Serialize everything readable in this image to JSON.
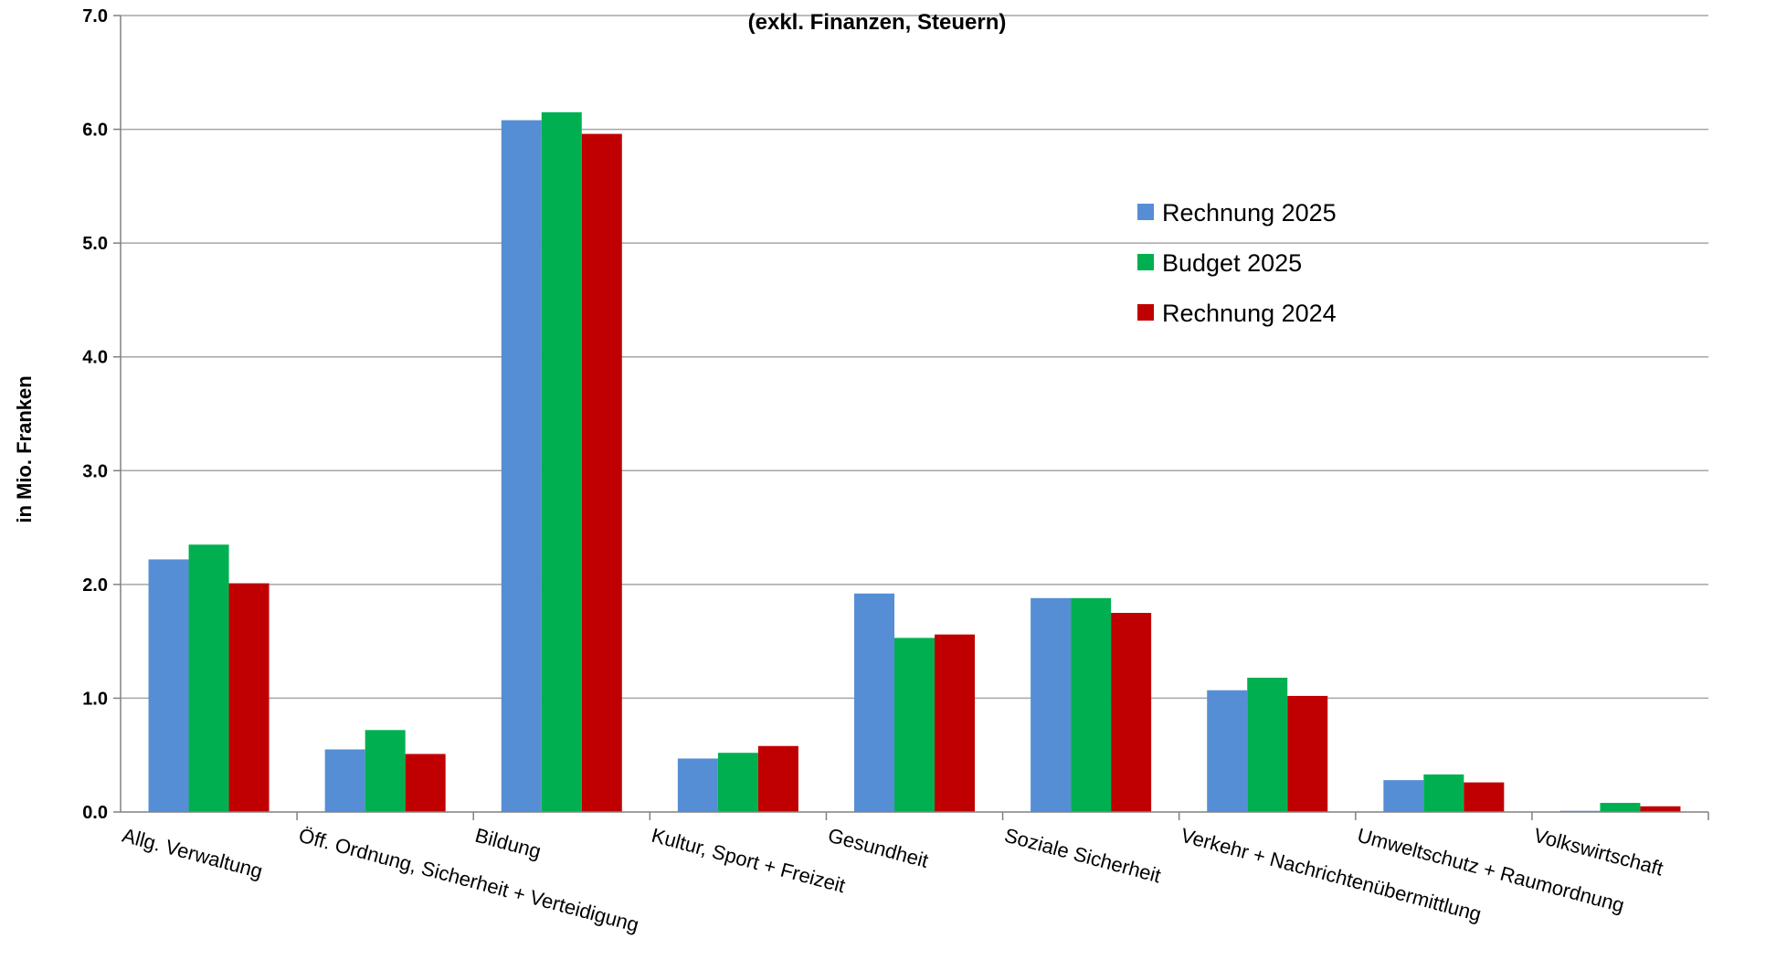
{
  "chart_data": {
    "type": "bar",
    "title": "(exkl. Finanzen, Steuern)",
    "ylabel": "in Mio. Franken",
    "xlabel": "",
    "ylim": [
      0,
      7
    ],
    "yticks": [
      "0.0",
      "1.0",
      "2.0",
      "3.0",
      "4.0",
      "5.0",
      "6.0",
      "7.0"
    ],
    "grid": true,
    "legend_position": "right",
    "categories": [
      "Allg. Verwaltung",
      "Öff. Ordnung, Sicherheit + Verteidigung",
      "Bildung",
      "Kultur, Sport + Freizeit",
      "Gesundheit",
      "Soziale Sicherheit",
      "Verkehr + Nachrichtenübermittlung",
      "Umweltschutz + Raumordnung",
      "Volkswirtschaft"
    ],
    "series": [
      {
        "name": "Rechnung 2025",
        "color": "#558ED5",
        "values": [
          2.22,
          0.55,
          6.08,
          0.47,
          1.92,
          1.88,
          1.07,
          0.28,
          0.01
        ]
      },
      {
        "name": "Budget 2025",
        "color": "#00B050",
        "values": [
          2.35,
          0.72,
          6.15,
          0.52,
          1.53,
          1.88,
          1.18,
          0.33,
          0.08
        ]
      },
      {
        "name": "Rechnung 2024",
        "color": "#C00000",
        "values": [
          2.01,
          0.51,
          5.96,
          0.58,
          1.56,
          1.75,
          1.02,
          0.26,
          0.05
        ]
      }
    ]
  }
}
